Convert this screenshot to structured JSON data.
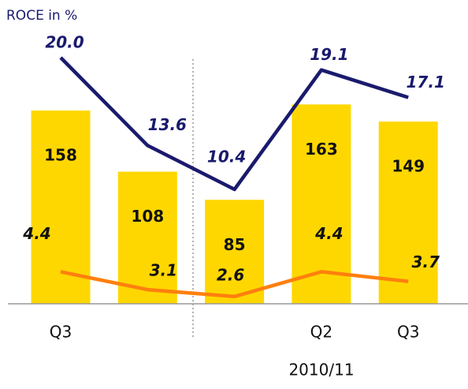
{
  "chart_data": {
    "type": "bar",
    "title": "ROCE in %",
    "categories": [
      "Q3",
      null,
      null,
      "Q2",
      "Q3"
    ],
    "values": [
      158,
      108,
      85,
      163,
      149
    ],
    "color": "#ffd700",
    "series": [
      {
        "color": "#1a1a6e",
        "values": [
          20.0,
          13.6,
          10.4,
          19.1,
          17.1
        ],
        "value_labels": [
          "20.0",
          "13.6",
          "10.4",
          "19.1",
          "17.1"
        ]
      },
      {
        "color": "#ff7f0e",
        "values": [
          4.4,
          3.1,
          2.6,
          4.4,
          3.7
        ]
      }
    ],
    "period_label": "2010/11"
  }
}
